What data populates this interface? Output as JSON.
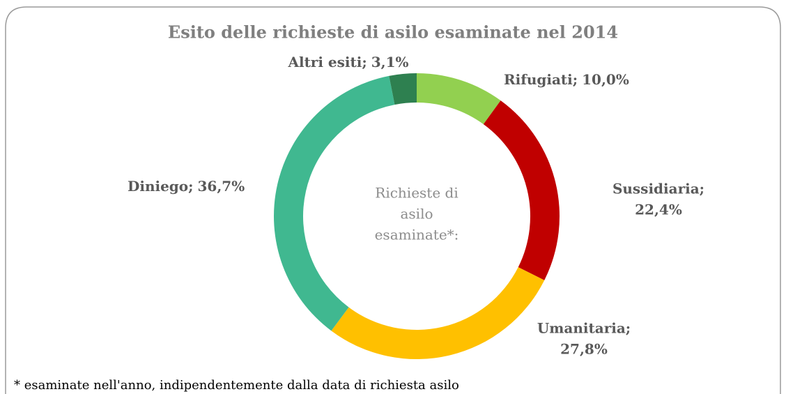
{
  "chart_data": {
    "type": "donut",
    "title": "Esito delle richieste di asilo esaminate nel 2014",
    "categories": [
      "Rifugiati;",
      "Sussidiaria;",
      "Umanitaria;",
      "Diniego;",
      "Altri esiti;"
    ],
    "values": [
      10.0,
      22.4,
      27.8,
      36.7,
      3.1
    ],
    "value_labels": [
      "10,0%",
      "22,4%",
      "27,8%",
      "36,7%",
      "3,1%"
    ],
    "colors": [
      "#92d050",
      "#c00000",
      "#ffc000",
      "#40b890",
      "#2e8050"
    ],
    "center_text": [
      "Richieste di",
      "asilo",
      "esaminate*:"
    ],
    "note": "* esaminate nell'anno, indipendentemente dalla data di richiesta asilo"
  }
}
